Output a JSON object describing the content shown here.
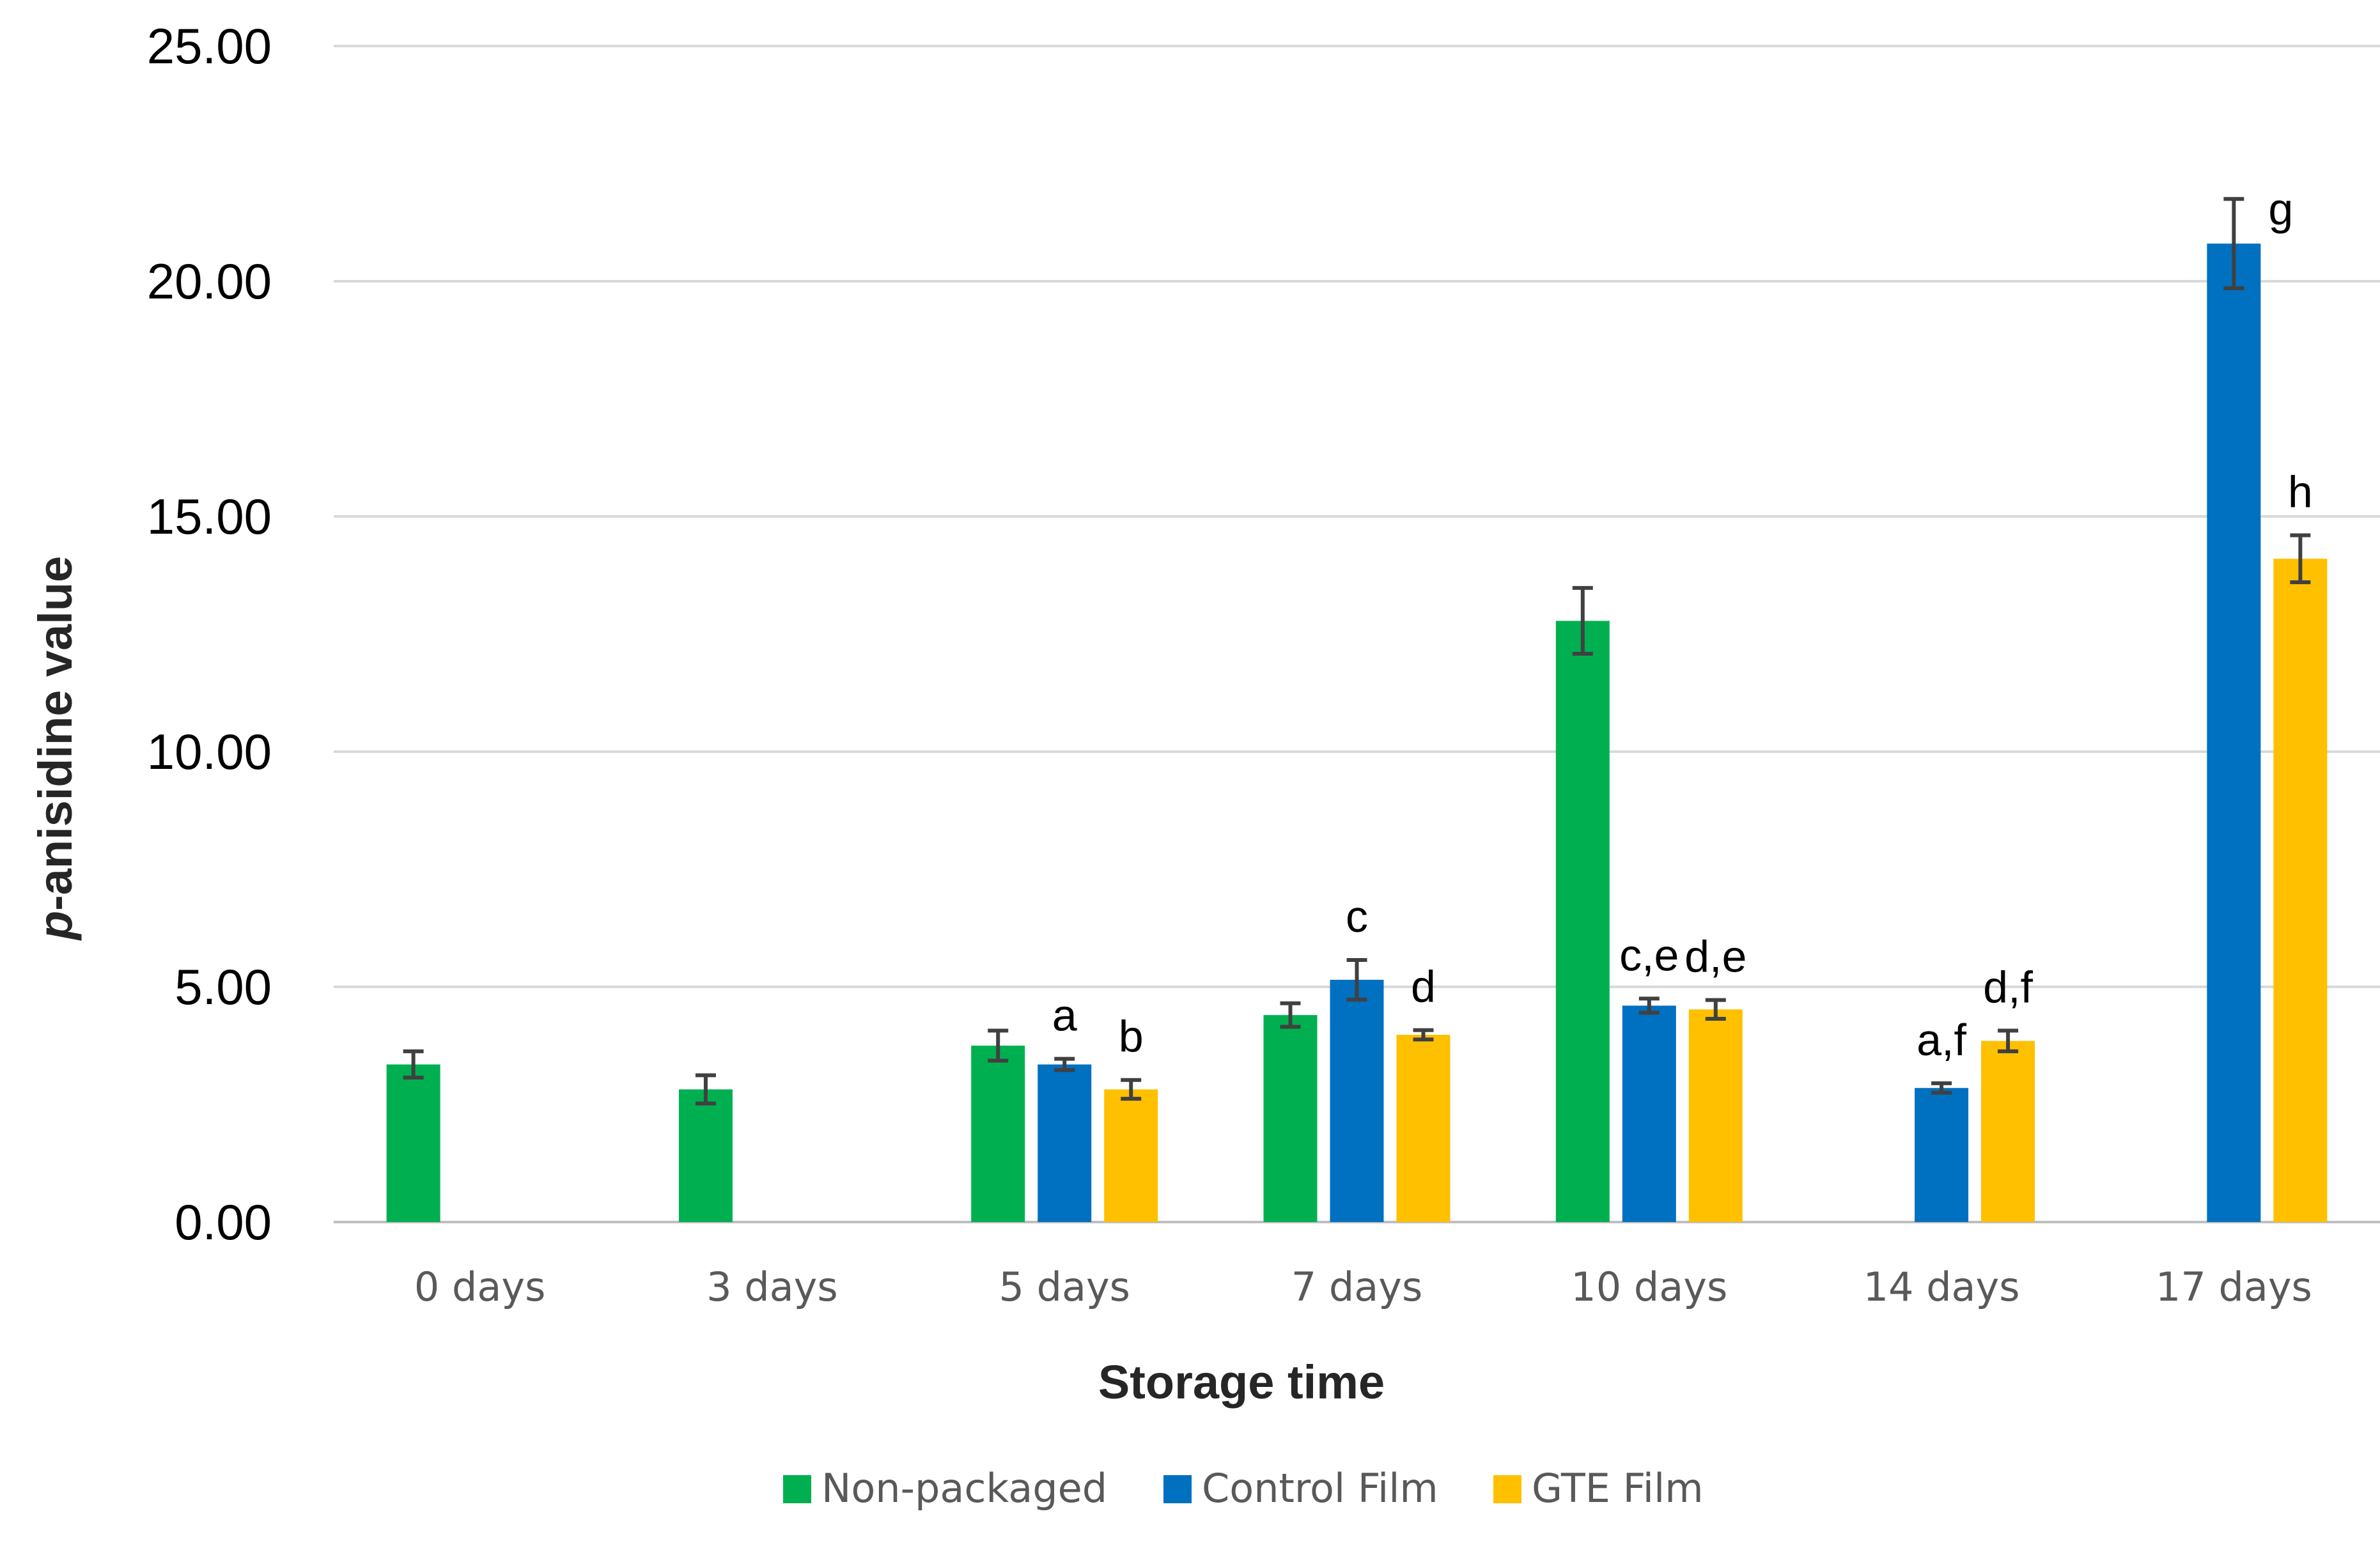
{
  "chart_data": {
    "type": "bar",
    "title": "",
    "xlabel": "Storage time",
    "ylabel_italic_prefix": "p",
    "ylabel_rest": "-anisidine value",
    "ylim": [
      0,
      25
    ],
    "yticks": [
      "0.00",
      "5.00",
      "10.00",
      "15.00",
      "20.00",
      "25.00"
    ],
    "grid": true,
    "legend_position": "bottom",
    "categories": [
      "0 days",
      "3 days",
      "5 days",
      "7 days",
      "10 days",
      "14 days",
      "17 days"
    ],
    "series": [
      {
        "name": "Non-packaged",
        "color": "#00b050",
        "values": [
          3.35,
          2.82,
          3.75,
          4.4,
          12.78,
          null,
          null
        ],
        "errors": [
          0.28,
          0.3,
          0.32,
          0.25,
          0.7,
          null,
          null
        ],
        "labels": [
          "",
          "",
          "",
          "",
          "",
          "",
          ""
        ]
      },
      {
        "name": "Control Film",
        "color": "#0070c0",
        "values": [
          null,
          null,
          3.35,
          5.15,
          4.6,
          2.85,
          20.8
        ],
        "errors": [
          null,
          null,
          0.12,
          0.42,
          0.15,
          0.1,
          0.95
        ],
        "labels": [
          "",
          "",
          "a",
          "c",
          "c,e",
          "a,f",
          "g"
        ]
      },
      {
        "name": "GTE Film",
        "color": "#ffc000",
        "values": [
          null,
          null,
          2.82,
          3.98,
          4.52,
          3.85,
          14.1
        ],
        "errors": [
          null,
          null,
          0.2,
          0.1,
          0.2,
          0.22,
          0.5
        ],
        "labels": [
          "",
          "",
          "b",
          "d",
          "d,e",
          "d,f",
          "h"
        ]
      }
    ]
  }
}
